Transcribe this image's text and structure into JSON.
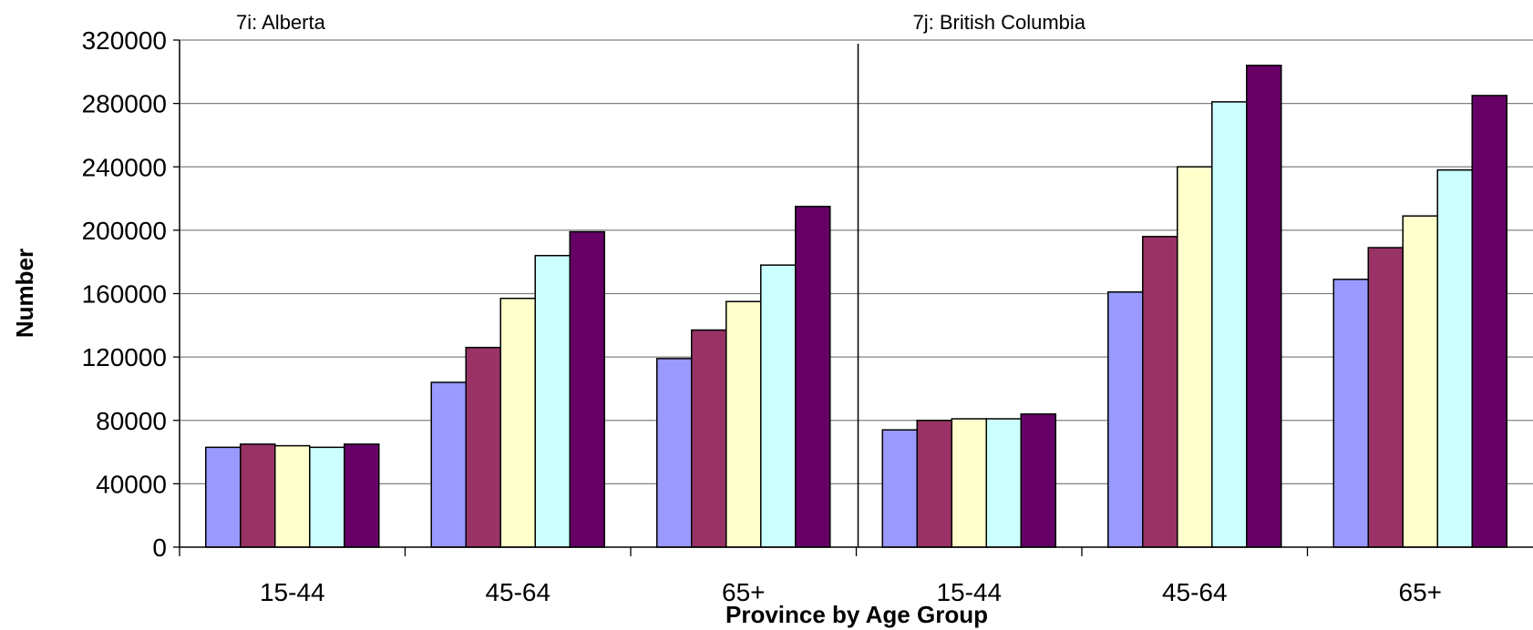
{
  "chart_data": {
    "type": "bar",
    "xlabel": "Province by Age Group",
    "ylabel": "Number",
    "ylim": [
      0,
      320000
    ],
    "yticks": [
      "0",
      "40000",
      "80000",
      "120000",
      "160000",
      "200000",
      "240000",
      "280000",
      "320000"
    ],
    "grid": true,
    "legend": "none",
    "panels": [
      {
        "label": "7i: Alberta",
        "categories": [
          "15-44",
          "45-64",
          "65+"
        ],
        "series": [
          {
            "color": "#9999FF",
            "values": [
              63000,
              104000,
              119000
            ]
          },
          {
            "color": "#993366",
            "values": [
              65000,
              126000,
              137000
            ]
          },
          {
            "color": "#FFFFCC",
            "values": [
              64000,
              157000,
              155000
            ]
          },
          {
            "color": "#CCFFFF",
            "values": [
              63000,
              184000,
              178000
            ]
          },
          {
            "color": "#660066",
            "values": [
              65000,
              199000,
              215000
            ]
          }
        ]
      },
      {
        "label": "7j: British Columbia",
        "categories": [
          "15-44",
          "45-64",
          "65+"
        ],
        "series": [
          {
            "color": "#9999FF",
            "values": [
              74000,
              161000,
              169000
            ]
          },
          {
            "color": "#993366",
            "values": [
              80000,
              196000,
              189000
            ]
          },
          {
            "color": "#FFFFCC",
            "values": [
              81000,
              240000,
              209000
            ]
          },
          {
            "color": "#CCFFFF",
            "values": [
              81000,
              281000,
              238000
            ]
          },
          {
            "color": "#660066",
            "values": [
              84000,
              304000,
              285000
            ]
          }
        ]
      }
    ]
  }
}
